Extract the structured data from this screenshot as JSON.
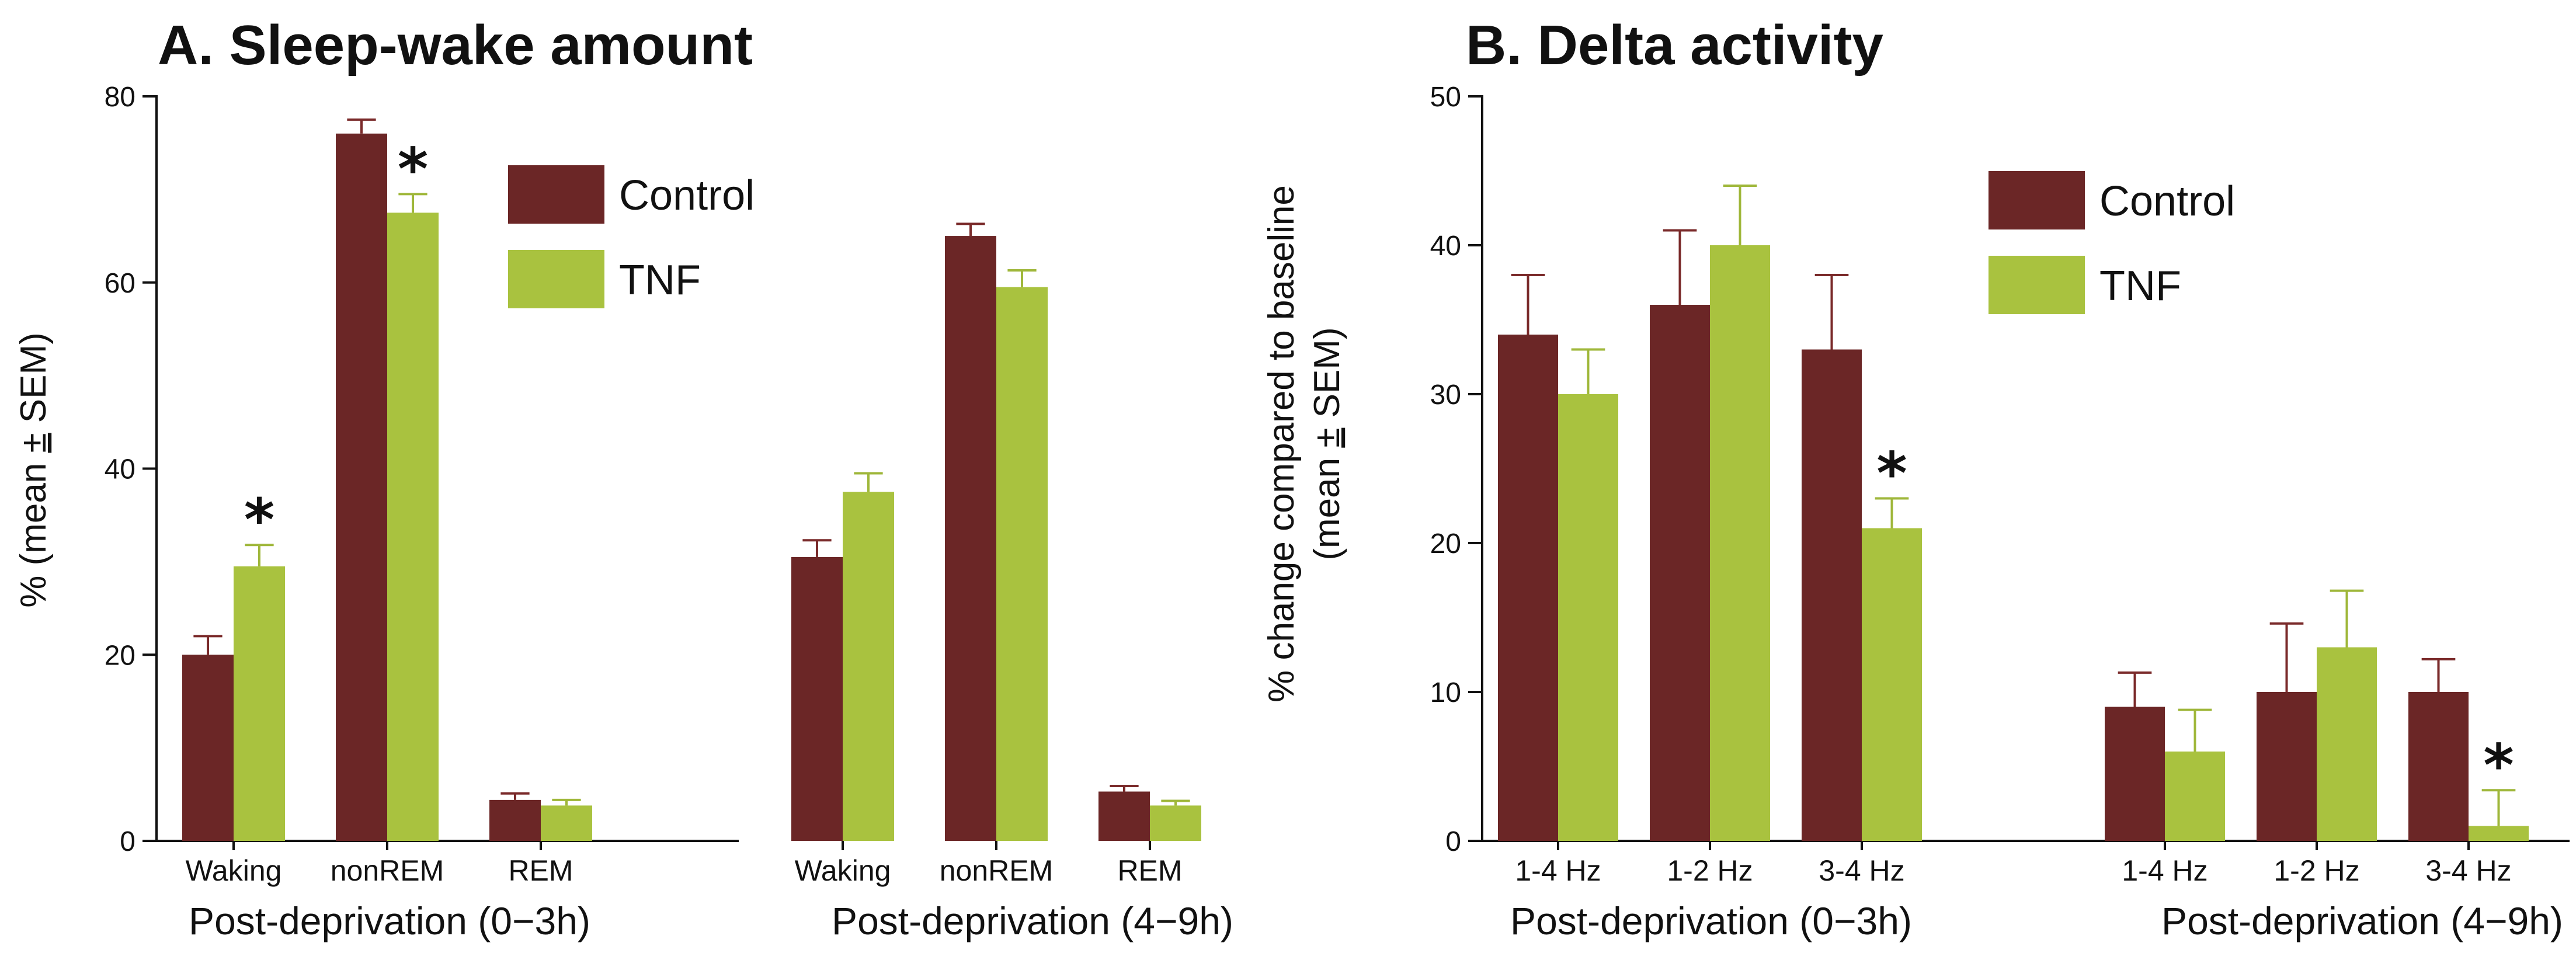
{
  "colors": {
    "control": "#6b2626",
    "tnf": "#a9c23f"
  },
  "chart_data": [
    {
      "type": "bar",
      "title": "A. Sleep-wake amount",
      "ylabel_prefix": "% (mean ",
      "ylabel_pm": "±",
      "ylabel_suffix": " SEM)",
      "ylim": [
        0,
        80
      ],
      "yticks": [
        "0",
        "20",
        "40",
        "60",
        "80"
      ],
      "legend": [
        "Control",
        "TNF"
      ],
      "groups": [
        {
          "label": "Post-deprivation (0−3h)",
          "categories": [
            "Waking",
            "nonREM",
            "REM"
          ],
          "series": [
            {
              "name": "Control",
              "values": [
                20,
                76,
                4.4
              ],
              "errors": [
                2,
                1.5,
                0.7
              ]
            },
            {
              "name": "TNF",
              "values": [
                29.5,
                67.5,
                3.8
              ],
              "errors": [
                2.3,
                2,
                0.6
              ]
            }
          ],
          "significant": [
            {
              "category": "Waking",
              "series": "TNF",
              "mark": "*"
            },
            {
              "category": "nonREM",
              "series": "TNF",
              "mark": "*"
            }
          ]
        },
        {
          "label": "Post-deprivation (4−9h)",
          "categories": [
            "Waking",
            "nonREM",
            "REM"
          ],
          "series": [
            {
              "name": "Control",
              "values": [
                30.5,
                65,
                5.3
              ],
              "errors": [
                1.8,
                1.3,
                0.6
              ]
            },
            {
              "name": "TNF",
              "values": [
                37.5,
                59.5,
                3.8
              ],
              "errors": [
                2,
                1.8,
                0.5
              ]
            }
          ],
          "significant": []
        }
      ]
    },
    {
      "type": "bar",
      "title": "B. Delta activity",
      "ylabel_line1": "% change compared to baseline",
      "ylabel_prefix": "(mean ",
      "ylabel_pm": "±",
      "ylabel_suffix": " SEM)",
      "ylim": [
        0,
        50
      ],
      "yticks": [
        "0",
        "10",
        "20",
        "30",
        "40",
        "50"
      ],
      "legend": [
        "Control",
        "TNF"
      ],
      "groups": [
        {
          "label": "Post-deprivation (0−3h)",
          "categories": [
            "1-4 Hz",
            "1-2 Hz",
            "3-4 Hz"
          ],
          "series": [
            {
              "name": "Control",
              "values": [
                34,
                36,
                33
              ],
              "errors": [
                4,
                5,
                5
              ]
            },
            {
              "name": "TNF",
              "values": [
                30,
                40,
                21
              ],
              "errors": [
                3,
                4,
                2
              ]
            }
          ],
          "significant": [
            {
              "category": "3-4 Hz",
              "series": "TNF",
              "mark": "*"
            }
          ]
        },
        {
          "label": "Post-deprivation (4−9h)",
          "categories": [
            "1-4 Hz",
            "1-2 Hz",
            "3-4 Hz"
          ],
          "series": [
            {
              "name": "Control",
              "values": [
                9,
                10,
                10
              ],
              "errors": [
                2.3,
                4.6,
                2.2
              ]
            },
            {
              "name": "TNF",
              "values": [
                6,
                13,
                1
              ],
              "errors": [
                2.8,
                3.8,
                2.4
              ]
            }
          ],
          "significant": [
            {
              "category": "3-4 Hz",
              "series": "TNF",
              "mark": "*"
            }
          ]
        }
      ]
    }
  ]
}
